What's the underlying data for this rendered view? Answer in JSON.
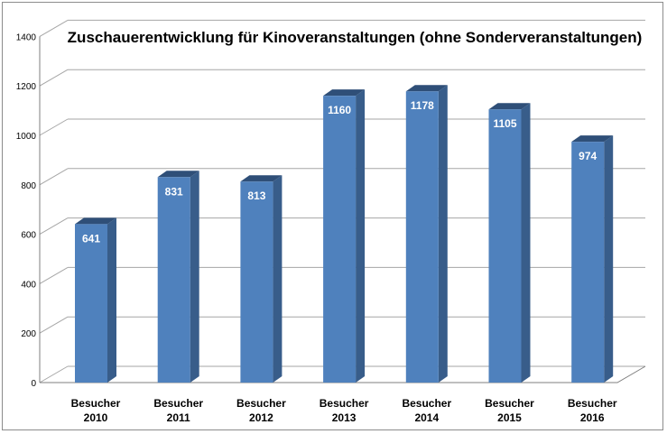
{
  "chart_data": {
    "type": "bar",
    "title": "Zuschauerentwicklung für Kinoveranstaltungen (ohne Sonderveranstaltungen)",
    "categories": [
      [
        "Besucher",
        "2010"
      ],
      [
        "Besucher",
        "2011"
      ],
      [
        "Besucher",
        "2012"
      ],
      [
        "Besucher",
        "2013"
      ],
      [
        "Besucher",
        "2014"
      ],
      [
        "Besucher",
        "2015"
      ],
      [
        "Besucher",
        "2016"
      ]
    ],
    "values": [
      641,
      831,
      813,
      1160,
      1178,
      1105,
      974
    ],
    "data_labels": [
      "641",
      "831",
      "813",
      "1160",
      "1178",
      "1105",
      "974"
    ],
    "yticks": [
      "0",
      "200",
      "400",
      "600",
      "800",
      "1000",
      "1200",
      "1400"
    ],
    "ylim": [
      0,
      1400
    ],
    "grid": true,
    "legend": "none",
    "colors": {
      "bar_front": "#4f81bd",
      "bar_side": "#385d8a",
      "bar_top": "#2f4f78",
      "grid": "#a6a6a6",
      "axis": "#7f7f7f"
    }
  }
}
